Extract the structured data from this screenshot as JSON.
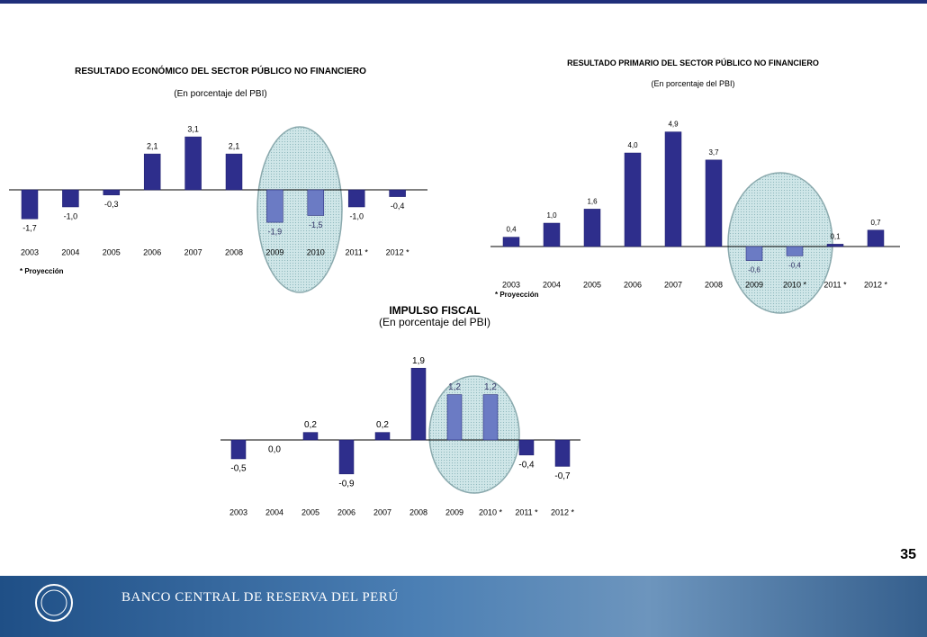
{
  "chart_data": [
    {
      "type": "bar",
      "title": "RESULTADO ECONÓMICO DEL SECTOR PÚBLICO NO FINANCIERO",
      "subtitle": "(En porcentaje del PBI)",
      "note": "* Proyección",
      "categories": [
        "2003",
        "2004",
        "2005",
        "2006",
        "2007",
        "2008",
        "2009",
        "2010",
        "2011 *",
        "2012 *"
      ],
      "values": [
        -1.7,
        -1.0,
        -0.3,
        2.1,
        3.1,
        2.1,
        -1.9,
        -1.5,
        -1.0,
        -0.4
      ],
      "value_labels": [
        "-1,7",
        "-1,0",
        "-0,3",
        "2,1",
        "3,1",
        "2,1",
        "-1,9",
        "-1,5",
        "-1,0",
        "-0,4"
      ],
      "colors": [
        "#2e2e8c",
        "#2e2e8c",
        "#2e2e8c",
        "#2e2e8c",
        "#2e2e8c",
        "#2e2e8c",
        "#6b7bc4",
        "#6b7bc4",
        "#2e2e8c",
        "#2e2e8c"
      ]
    },
    {
      "type": "bar",
      "title": "RESULTADO PRIMARIO DEL SECTOR PÚBLICO NO FINANCIERO",
      "subtitle": "(En porcentaje del PBI)",
      "note": "* Proyección",
      "categories": [
        "2003",
        "2004",
        "2005",
        "2006",
        "2007",
        "2008",
        "2009",
        "2010 *",
        "2011 *",
        "2012 *"
      ],
      "values": [
        0.4,
        1.0,
        1.6,
        4.0,
        4.9,
        3.7,
        -0.6,
        -0.4,
        0.1,
        0.7
      ],
      "value_labels": [
        "0,4",
        "1,0",
        "1,6",
        "4,0",
        "4,9",
        "3,7",
        "-0,6",
        "-0,4",
        "0,1",
        "0,7"
      ],
      "colors": [
        "#2e2e8c",
        "#2e2e8c",
        "#2e2e8c",
        "#2e2e8c",
        "#2e2e8c",
        "#2e2e8c",
        "#6b7bc4",
        "#6b7bc4",
        "#2e2e8c",
        "#2e2e8c"
      ]
    },
    {
      "type": "bar",
      "title": "IMPULSO FISCAL",
      "subtitle": "(En porcentaje del PBI)",
      "categories": [
        "2003",
        "2004",
        "2005",
        "2006",
        "2007",
        "2008",
        "2009",
        "2010 *",
        "2011 *",
        "2012 *"
      ],
      "values": [
        -0.5,
        0.0,
        0.2,
        -0.9,
        0.2,
        1.9,
        1.2,
        1.2,
        -0.4,
        -0.7
      ],
      "value_labels": [
        "-0,5",
        "0,0",
        "0,2",
        "-0,9",
        "0,2",
        "1,9",
        "1,2",
        "1,2",
        "-0,4",
        "-0,7"
      ],
      "colors": [
        "#2e2e8c",
        "#2e2e8c",
        "#2e2e8c",
        "#2e2e8c",
        "#2e2e8c",
        "#2e2e8c",
        "#6b7bc4",
        "#6b7bc4",
        "#2e2e8c",
        "#2e2e8c"
      ]
    }
  ],
  "footer": {
    "bank": "BANCO CENTRAL DE RESERVA DEL PERÚ",
    "page": "35"
  }
}
